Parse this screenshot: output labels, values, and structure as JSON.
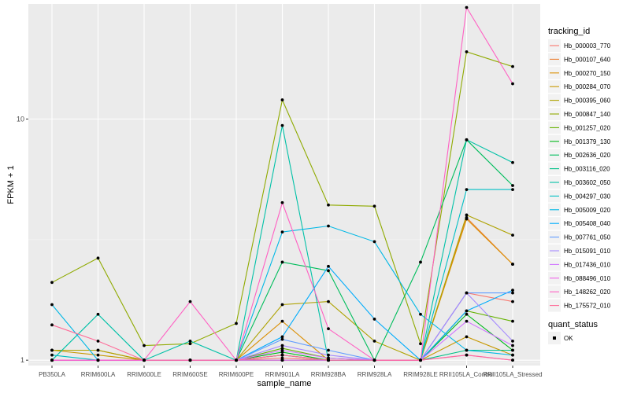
{
  "chart_data": {
    "type": "line",
    "xlabel": "sample_name",
    "ylabel": "FPKM + 1",
    "y_scale": "log10",
    "ylim": [
      0.95,
      30
    ],
    "y_ticks": [
      1,
      10
    ],
    "grid": true,
    "legend_placement": "right",
    "point_color": "#000000",
    "categories": [
      "PB350LA",
      "RRIM600LA",
      "RRIM600LE",
      "RRIM600SE",
      "RRIM600PE",
      "RRIM901LA",
      "RRIM928BA",
      "RRIM928LA",
      "RRIM928LE",
      "RRII105LA_Control",
      "RRII105LA_Stressed"
    ],
    "series": [
      {
        "name": "Hb_000003_770",
        "color": "#F8766D",
        "values": [
          1.0,
          1.0,
          1.0,
          1.0,
          1.0,
          1.02,
          1.0,
          1.0,
          1.0,
          1.9,
          1.75
        ]
      },
      {
        "name": "Hb_000107_640",
        "color": "#EC8239",
        "values": [
          1.0,
          1.0,
          1.0,
          1.0,
          1.0,
          1.05,
          1.0,
          1.0,
          1.0,
          3.9,
          2.5
        ]
      },
      {
        "name": "Hb_000270_150",
        "color": "#DB8E00",
        "values": [
          1.1,
          1.1,
          1.0,
          1.0,
          1.0,
          1.45,
          1.0,
          1.0,
          1.0,
          3.85,
          2.5
        ]
      },
      {
        "name": "Hb_000284_070",
        "color": "#C79800",
        "values": [
          1.1,
          1.05,
          1.0,
          1.0,
          1.0,
          1.0,
          1.0,
          1.0,
          1.0,
          1.25,
          1.05
        ]
      },
      {
        "name": "Hb_000395_060",
        "color": "#AEA200",
        "values": [
          1.1,
          1.1,
          1.0,
          1.0,
          1.0,
          1.7,
          1.75,
          1.2,
          1.0,
          4.0,
          3.3
        ]
      },
      {
        "name": "Hb_000847_140",
        "color": "#8FAA00",
        "values": [
          2.1,
          2.65,
          1.15,
          1.17,
          1.42,
          12.0,
          4.4,
          4.35,
          1.17,
          19.0,
          16.5
        ]
      },
      {
        "name": "Hb_001257_020",
        "color": "#64B200",
        "values": [
          1.0,
          1.0,
          1.0,
          1.0,
          1.0,
          1.12,
          1.02,
          1.0,
          1.0,
          1.6,
          1.45
        ]
      },
      {
        "name": "Hb_001379_130",
        "color": "#00B81B",
        "values": [
          1.0,
          1.0,
          1.0,
          1.0,
          1.0,
          1.08,
          1.0,
          1.0,
          1.0,
          1.55,
          1.1
        ]
      },
      {
        "name": "Hb_002636_020",
        "color": "#00BD5C",
        "values": [
          1.0,
          1.0,
          1.0,
          1.0,
          1.0,
          2.55,
          2.35,
          1.0,
          2.55,
          8.2,
          5.3
        ]
      },
      {
        "name": "Hb_003116_020",
        "color": "#00C086",
        "values": [
          1.0,
          1.0,
          1.0,
          1.0,
          1.0,
          1.05,
          1.0,
          1.0,
          1.0,
          1.1,
          1.1
        ]
      },
      {
        "name": "Hb_003602_050",
        "color": "#00C1A7",
        "values": [
          1.0,
          1.55,
          1.0,
          1.2,
          1.0,
          9.4,
          1.0,
          1.0,
          1.0,
          8.2,
          6.6
        ]
      },
      {
        "name": "Hb_004297_030",
        "color": "#00BFC4",
        "values": [
          1.05,
          1.0,
          1.0,
          1.0,
          1.0,
          1.0,
          1.0,
          1.0,
          1.0,
          5.1,
          5.1
        ]
      },
      {
        "name": "Hb_005009_020",
        "color": "#00B8E5",
        "values": [
          1.7,
          1.0,
          1.0,
          1.0,
          1.0,
          3.4,
          3.6,
          3.1,
          1.55,
          1.1,
          1.05
        ]
      },
      {
        "name": "Hb_005408_040",
        "color": "#00ACFC",
        "values": [
          1.0,
          1.0,
          1.0,
          1.0,
          1.0,
          1.25,
          2.45,
          1.48,
          1.0,
          1.6,
          1.95
        ]
      },
      {
        "name": "Hb_007761_050",
        "color": "#619CFF",
        "values": [
          1.0,
          1.0,
          1.0,
          1.0,
          1.0,
          1.22,
          1.1,
          1.0,
          1.0,
          1.9,
          1.9
        ]
      },
      {
        "name": "Hb_015091_010",
        "color": "#A58AFF",
        "values": [
          1.0,
          1.0,
          1.0,
          1.0,
          1.0,
          1.15,
          1.05,
          1.0,
          1.0,
          1.9,
          1.2
        ]
      },
      {
        "name": "Hb_017436_010",
        "color": "#D177FF",
        "values": [
          1.0,
          1.0,
          1.0,
          1.0,
          1.0,
          1.1,
          1.02,
          1.0,
          1.0,
          1.45,
          1.15
        ]
      },
      {
        "name": "Hb_088496_010",
        "color": "#F066EA",
        "values": [
          1.0,
          1.0,
          1.0,
          1.0,
          1.0,
          1.0,
          1.0,
          1.0,
          1.0,
          1.05,
          1.0
        ]
      },
      {
        "name": "Hb_148262_020",
        "color": "#FF61C3",
        "values": [
          1.0,
          1.0,
          1.0,
          1.75,
          1.0,
          4.5,
          1.35,
          1.0,
          1.0,
          29.0,
          14.0
        ]
      },
      {
        "name": "Hb_175572_010",
        "color": "#FF6A98",
        "values": [
          1.4,
          1.2,
          1.0,
          1.0,
          1.0,
          1.05,
          1.0,
          1.0,
          1.0,
          1.05,
          1.0
        ]
      }
    ],
    "legend_title": "tracking_id",
    "legend2_title": "quant_status",
    "legend2_items": [
      "OK"
    ]
  }
}
